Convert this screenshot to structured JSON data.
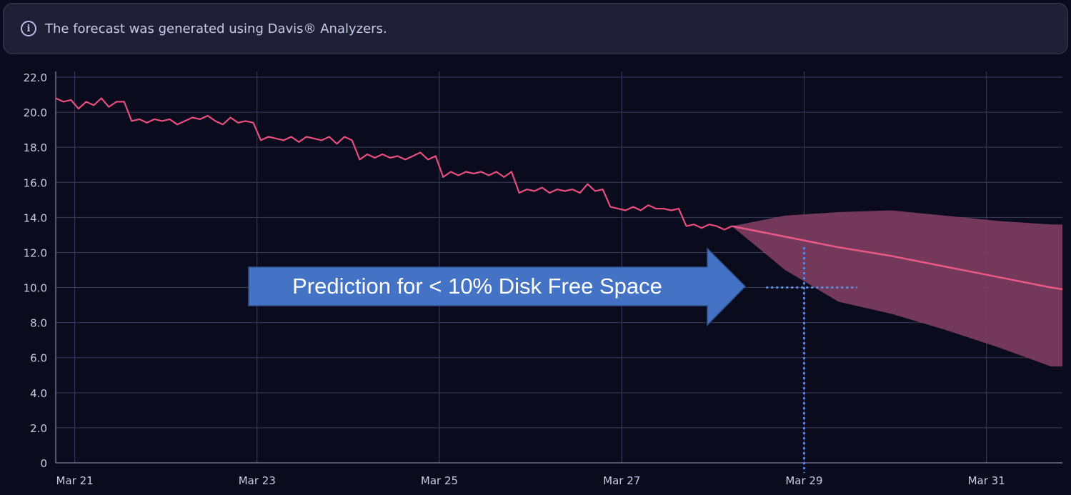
{
  "banner": {
    "icon": "info-icon",
    "text": "The forecast was generated using Davis® Analyzers."
  },
  "callout": {
    "text": "Prediction for < 10% Disk Free Space",
    "color": "#4472c4"
  },
  "colors": {
    "background": "#0b0b1e",
    "grid": "#3a3b5a",
    "series_line": "#e84e7d",
    "forecast_band": "#7a3b5f",
    "forecast_line": "#e85a85",
    "annotation": "#5b8bdc",
    "tick_text": "#c9cbe6"
  },
  "chart_data": {
    "type": "line",
    "title": "",
    "xlabel": "",
    "ylabel": "",
    "ylim": [
      0,
      22
    ],
    "y_ticks": [
      "22.0",
      "20.0",
      "18.0",
      "16.0",
      "14.0",
      "12.0",
      "10.0",
      "8.0",
      "6.0",
      "4.0",
      "2.0",
      "0"
    ],
    "y_tick_values": [
      22,
      20,
      18,
      16,
      14,
      12,
      10,
      8,
      6,
      4,
      2,
      0
    ],
    "x_range": [
      "Mar 20 19:00",
      "Mar 31 20:00"
    ],
    "x_ticks": [
      {
        "label": "Mar 21",
        "date": "Mar 21"
      },
      {
        "label": "Mar 23",
        "date": "Mar 23"
      },
      {
        "label": "Mar 25",
        "date": "Mar 25"
      },
      {
        "label": "Mar 27",
        "date": "Mar 27"
      },
      {
        "label": "Mar 29",
        "date": "Mar 29"
      },
      {
        "label": "Mar 31",
        "date": "Mar 31"
      }
    ],
    "grid": true,
    "series": [
      {
        "kind": "observed",
        "points": [
          [
            "Mar 20 19:00",
            20.8
          ],
          [
            "Mar 20 21:00",
            20.6
          ],
          [
            "Mar 20 23:00",
            20.7
          ],
          [
            "Mar 21 01:00",
            20.2
          ],
          [
            "Mar 21 03:00",
            20.6
          ],
          [
            "Mar 21 05:00",
            20.4
          ],
          [
            "Mar 21 07:00",
            20.8
          ],
          [
            "Mar 21 09:00",
            20.3
          ],
          [
            "Mar 21 11:00",
            20.6
          ],
          [
            "Mar 21 13:00",
            20.6
          ],
          [
            "Mar 21 15:00",
            19.5
          ],
          [
            "Mar 21 17:00",
            19.6
          ],
          [
            "Mar 21 19:00",
            19.4
          ],
          [
            "Mar 21 21:00",
            19.6
          ],
          [
            "Mar 21 23:00",
            19.5
          ],
          [
            "Mar 22 01:00",
            19.6
          ],
          [
            "Mar 22 03:00",
            19.3
          ],
          [
            "Mar 22 05:00",
            19.5
          ],
          [
            "Mar 22 07:00",
            19.7
          ],
          [
            "Mar 22 09:00",
            19.6
          ],
          [
            "Mar 22 11:00",
            19.8
          ],
          [
            "Mar 22 13:00",
            19.5
          ],
          [
            "Mar 22 15:00",
            19.3
          ],
          [
            "Mar 22 17:00",
            19.7
          ],
          [
            "Mar 22 19:00",
            19.4
          ],
          [
            "Mar 22 21:00",
            19.5
          ],
          [
            "Mar 22 23:00",
            19.4
          ],
          [
            "Mar 23 01:00",
            18.4
          ],
          [
            "Mar 23 03:00",
            18.6
          ],
          [
            "Mar 23 05:00",
            18.5
          ],
          [
            "Mar 23 07:00",
            18.4
          ],
          [
            "Mar 23 09:00",
            18.6
          ],
          [
            "Mar 23 11:00",
            18.3
          ],
          [
            "Mar 23 13:00",
            18.6
          ],
          [
            "Mar 23 15:00",
            18.5
          ],
          [
            "Mar 23 17:00",
            18.4
          ],
          [
            "Mar 23 19:00",
            18.6
          ],
          [
            "Mar 23 21:00",
            18.2
          ],
          [
            "Mar 23 23:00",
            18.6
          ],
          [
            "Mar 24 01:00",
            18.4
          ],
          [
            "Mar 24 03:00",
            17.3
          ],
          [
            "Mar 24 05:00",
            17.6
          ],
          [
            "Mar 24 07:00",
            17.4
          ],
          [
            "Mar 24 09:00",
            17.6
          ],
          [
            "Mar 24 11:00",
            17.4
          ],
          [
            "Mar 24 13:00",
            17.5
          ],
          [
            "Mar 24 15:00",
            17.3
          ],
          [
            "Mar 24 17:00",
            17.5
          ],
          [
            "Mar 24 19:00",
            17.7
          ],
          [
            "Mar 24 21:00",
            17.3
          ],
          [
            "Mar 24 23:00",
            17.5
          ],
          [
            "Mar 25 01:00",
            16.3
          ],
          [
            "Mar 25 03:00",
            16.6
          ],
          [
            "Mar 25 05:00",
            16.4
          ],
          [
            "Mar 25 07:00",
            16.6
          ],
          [
            "Mar 25 09:00",
            16.5
          ],
          [
            "Mar 25 11:00",
            16.6
          ],
          [
            "Mar 25 13:00",
            16.4
          ],
          [
            "Mar 25 15:00",
            16.6
          ],
          [
            "Mar 25 17:00",
            16.3
          ],
          [
            "Mar 25 19:00",
            16.6
          ],
          [
            "Mar 25 21:00",
            15.4
          ],
          [
            "Mar 25 23:00",
            15.6
          ],
          [
            "Mar 26 01:00",
            15.5
          ],
          [
            "Mar 26 03:00",
            15.7
          ],
          [
            "Mar 26 05:00",
            15.4
          ],
          [
            "Mar 26 07:00",
            15.6
          ],
          [
            "Mar 26 09:00",
            15.5
          ],
          [
            "Mar 26 11:00",
            15.6
          ],
          [
            "Mar 26 13:00",
            15.4
          ],
          [
            "Mar 26 15:00",
            15.9
          ],
          [
            "Mar 26 17:00",
            15.5
          ],
          [
            "Mar 26 19:00",
            15.6
          ],
          [
            "Mar 26 21:00",
            14.6
          ],
          [
            "Mar 26 23:00",
            14.5
          ],
          [
            "Mar 27 01:00",
            14.4
          ],
          [
            "Mar 27 03:00",
            14.6
          ],
          [
            "Mar 27 05:00",
            14.4
          ],
          [
            "Mar 27 07:00",
            14.7
          ],
          [
            "Mar 27 09:00",
            14.5
          ],
          [
            "Mar 27 11:00",
            14.5
          ],
          [
            "Mar 27 13:00",
            14.4
          ],
          [
            "Mar 27 15:00",
            14.5
          ],
          [
            "Mar 27 17:00",
            13.5
          ],
          [
            "Mar 27 19:00",
            13.6
          ],
          [
            "Mar 27 21:00",
            13.4
          ],
          [
            "Mar 27 23:00",
            13.6
          ],
          [
            "Mar 28 01:00",
            13.5
          ],
          [
            "Mar 28 03:00",
            13.3
          ],
          [
            "Mar 28 05:00",
            13.5
          ]
        ]
      },
      {
        "kind": "forecast",
        "points": [
          [
            "Mar 28 05:00",
            13.5
          ],
          [
            "Mar 28 19:00",
            12.9
          ],
          [
            "Mar 29 09:00",
            12.3
          ],
          [
            "Mar 29 23:00",
            11.8
          ],
          [
            "Mar 30 13:00",
            11.2
          ],
          [
            "Mar 31 03:00",
            10.6
          ],
          [
            "Mar 31 17:00",
            10.0
          ],
          [
            "Mar 31 20:00",
            9.9
          ]
        ],
        "upper": [
          [
            "Mar 28 05:00",
            13.5
          ],
          [
            "Mar 28 19:00",
            14.1
          ],
          [
            "Mar 29 09:00",
            14.3
          ],
          [
            "Mar 29 23:00",
            14.4
          ],
          [
            "Mar 30 13:00",
            14.1
          ],
          [
            "Mar 31 03:00",
            13.8
          ],
          [
            "Mar 31 17:00",
            13.6
          ],
          [
            "Mar 31 20:00",
            13.6
          ]
        ],
        "lower": [
          [
            "Mar 28 05:00",
            13.5
          ],
          [
            "Mar 28 19:00",
            11.0
          ],
          [
            "Mar 29 09:00",
            9.2
          ],
          [
            "Mar 29 23:00",
            8.5
          ],
          [
            "Mar 30 13:00",
            7.6
          ],
          [
            "Mar 31 03:00",
            6.6
          ],
          [
            "Mar 31 17:00",
            5.5
          ],
          [
            "Mar 31 20:00",
            5.5
          ]
        ]
      }
    ],
    "annotations": [
      {
        "kind": "threshold",
        "y": 10.0,
        "x_range": [
          "Mar 28 14:00",
          "Mar 29 14:00"
        ],
        "style": "dotted"
      },
      {
        "kind": "crossing",
        "x": "Mar 29",
        "y_range": [
          0,
          12.3
        ],
        "style": "dotted"
      }
    ]
  }
}
